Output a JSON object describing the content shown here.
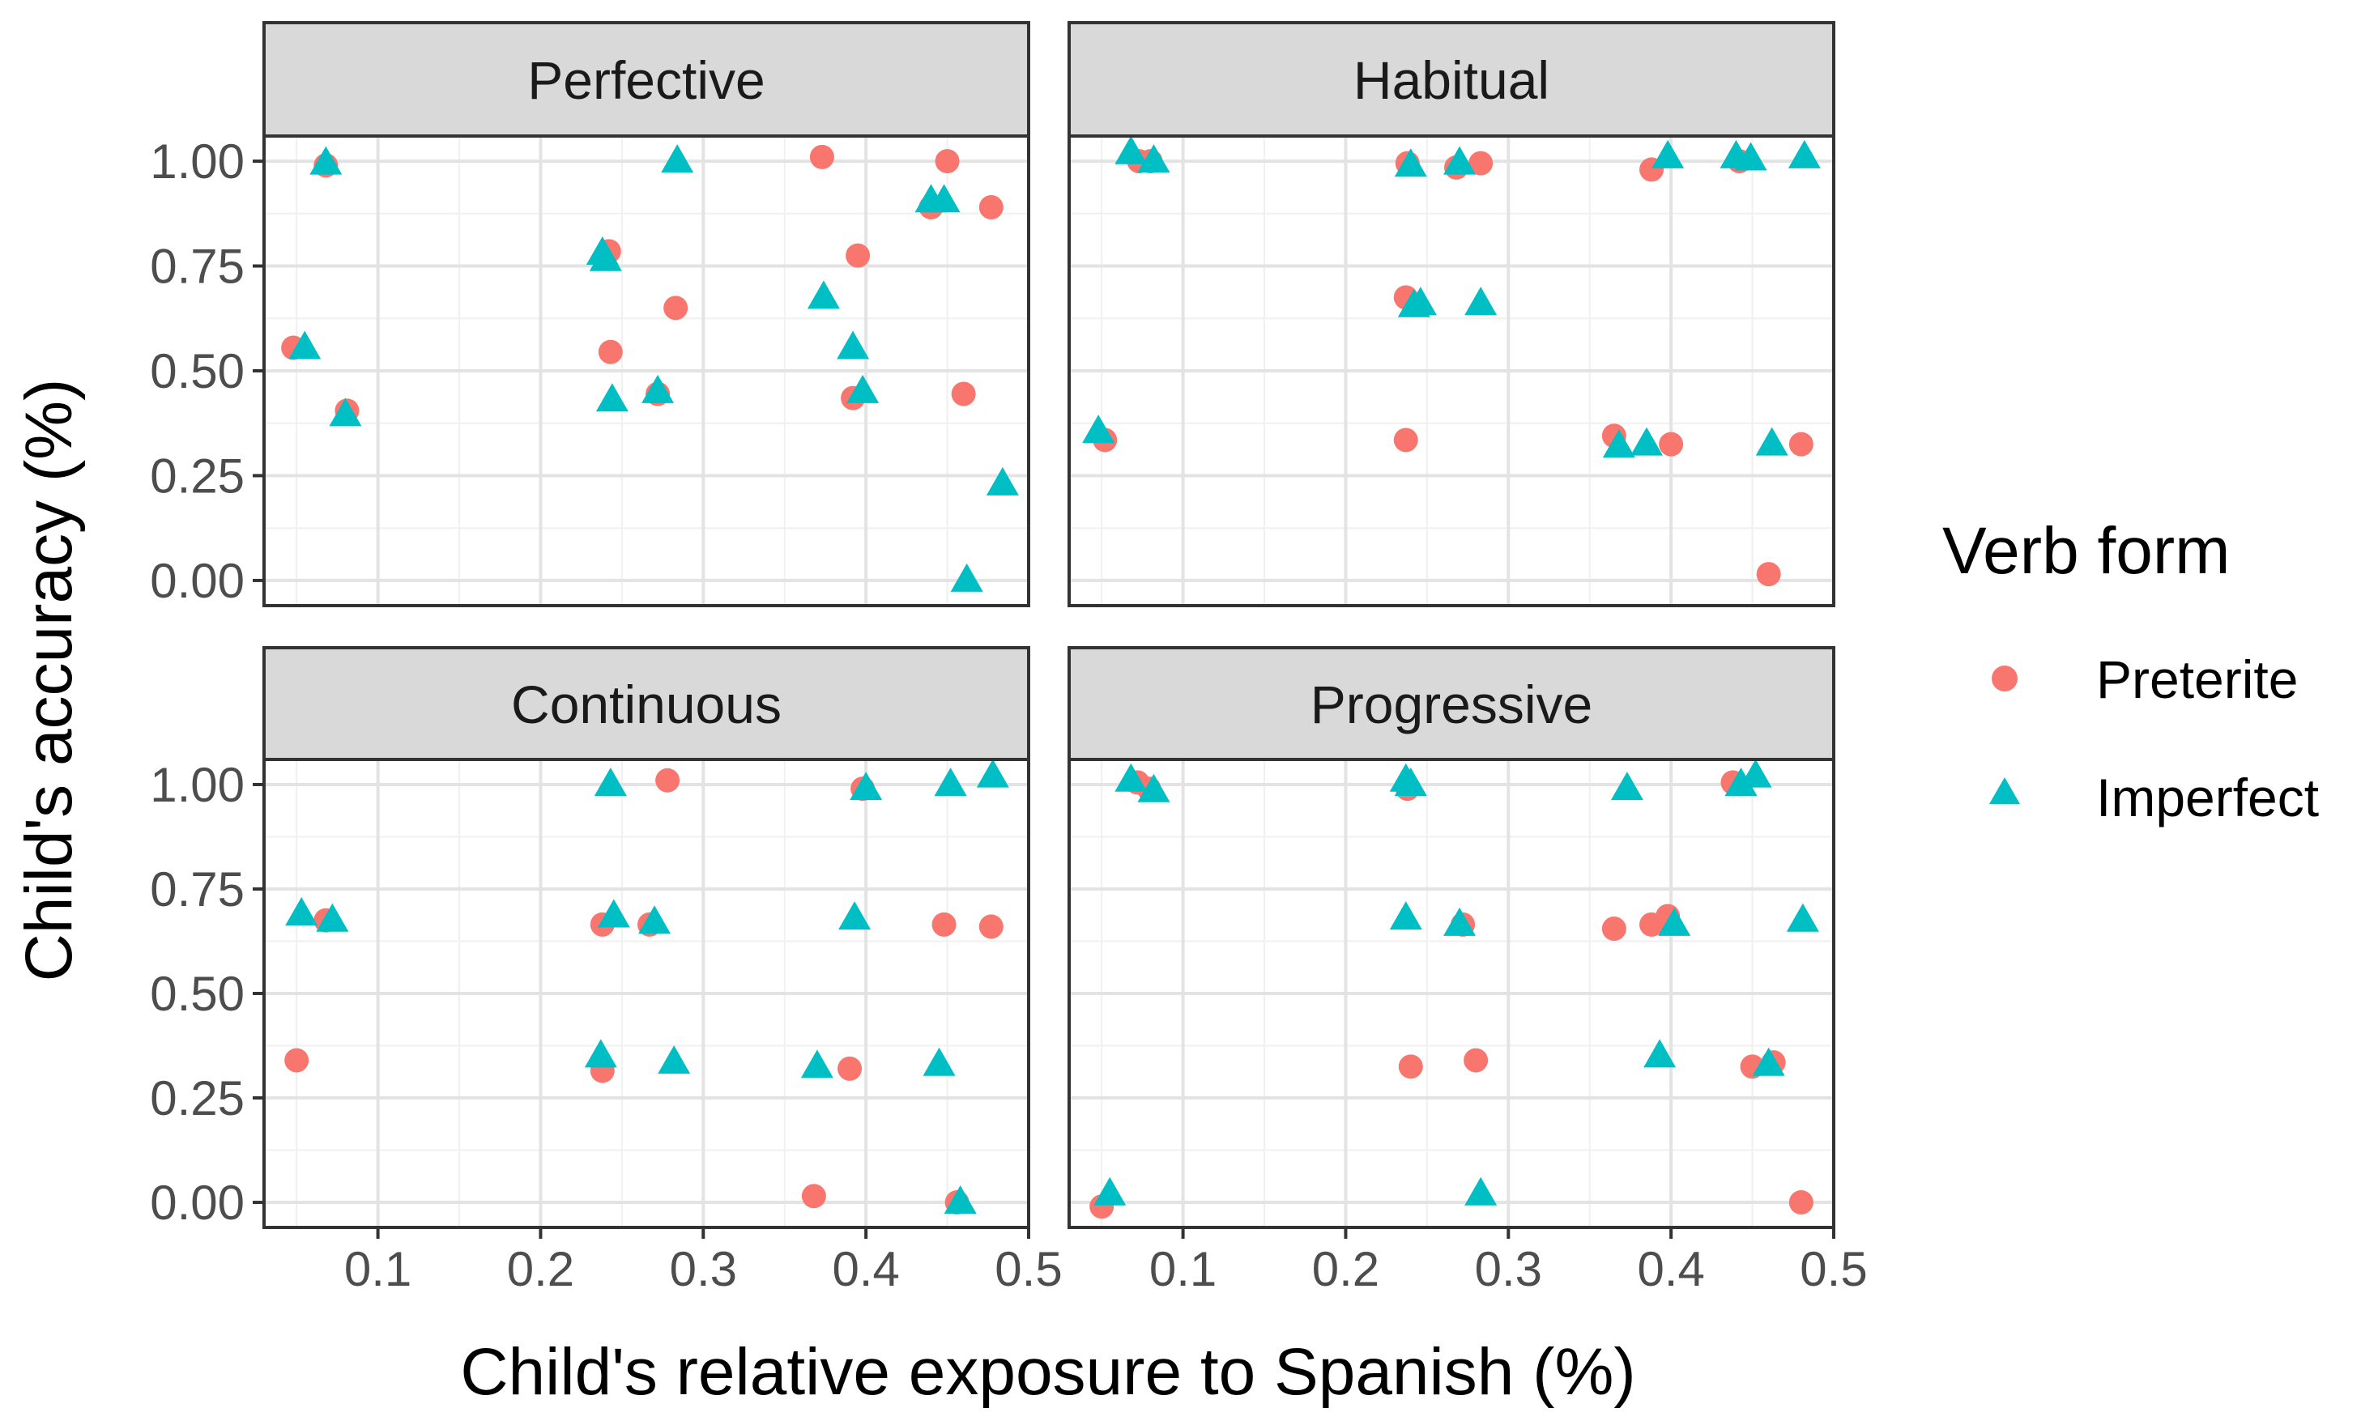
{
  "chart_data": {
    "type": "scatter",
    "xlabel": "Child's relative exposure to Spanish (%)",
    "ylabel": "Child's accuracy (%)",
    "xlim": [
      0.03,
      0.5
    ],
    "ylim": [
      -0.06,
      1.06
    ],
    "xticks": [
      0.1,
      0.2,
      0.3,
      0.4,
      0.5
    ],
    "xtick_labels": [
      "0.1",
      "0.2",
      "0.3",
      "0.4",
      "0.5"
    ],
    "yticks": [
      0,
      0.25,
      0.5,
      0.75,
      1.0
    ],
    "ytick_labels": [
      "0.00",
      "0.25",
      "0.50",
      "0.75",
      "1.00"
    ],
    "grid": true,
    "legend": {
      "title": "Verb form",
      "position": "right",
      "entries": [
        {
          "label": "Preterite",
          "color": "#F8766D",
          "shape": "circle"
        },
        {
          "label": "Imperfect",
          "color": "#00BFC4",
          "shape": "triangle"
        }
      ]
    },
    "panels": [
      {
        "title": "Perfective",
        "series": [
          {
            "name": "Preterite",
            "points": [
              [
                0.048,
                0.555
              ],
              [
                0.068,
                0.99
              ],
              [
                0.081,
                0.405
              ],
              [
                0.242,
                0.785
              ],
              [
                0.243,
                0.545
              ],
              [
                0.272,
                0.445
              ],
              [
                0.283,
                0.65
              ],
              [
                0.373,
                1.01
              ],
              [
                0.395,
                0.775
              ],
              [
                0.392,
                0.435
              ],
              [
                0.44,
                0.89
              ],
              [
                0.45,
                1.0
              ],
              [
                0.46,
                0.445
              ],
              [
                0.477,
                0.89
              ]
            ]
          },
          {
            "name": "Imperfect",
            "points": [
              [
                0.055,
                0.555
              ],
              [
                0.068,
                0.995
              ],
              [
                0.08,
                0.395
              ],
              [
                0.238,
                0.78
              ],
              [
                0.24,
                0.765
              ],
              [
                0.244,
                0.43
              ],
              [
                0.272,
                0.45
              ],
              [
                0.284,
                1.0
              ],
              [
                0.374,
                0.675
              ],
              [
                0.392,
                0.555
              ],
              [
                0.398,
                0.45
              ],
              [
                0.44,
                0.905
              ],
              [
                0.448,
                0.905
              ],
              [
                0.462,
                0.0
              ],
              [
                0.484,
                0.23
              ]
            ]
          }
        ]
      },
      {
        "title": "Habitual",
        "series": [
          {
            "name": "Preterite",
            "points": [
              [
                0.052,
                0.335
              ],
              [
                0.073,
                1.0
              ],
              [
                0.08,
                1.0
              ],
              [
                0.237,
                0.335
              ],
              [
                0.237,
                0.675
              ],
              [
                0.238,
                0.995
              ],
              [
                0.268,
                0.985
              ],
              [
                0.283,
                0.995
              ],
              [
                0.388,
                0.98
              ],
              [
                0.365,
                0.345
              ],
              [
                0.4,
                0.325
              ],
              [
                0.442,
                1.0
              ],
              [
                0.46,
                0.015
              ],
              [
                0.48,
                0.325
              ]
            ]
          },
          {
            "name": "Imperfect",
            "points": [
              [
                0.048,
                0.355
              ],
              [
                0.068,
                1.02
              ],
              [
                0.082,
                1.0
              ],
              [
                0.24,
                0.99
              ],
              [
                0.242,
                0.655
              ],
              [
                0.246,
                0.66
              ],
              [
                0.27,
                0.995
              ],
              [
                0.283,
                0.66
              ],
              [
                0.368,
                0.32
              ],
              [
                0.385,
                0.325
              ],
              [
                0.398,
                1.01
              ],
              [
                0.44,
                1.01
              ],
              [
                0.449,
                1.005
              ],
              [
                0.462,
                0.325
              ],
              [
                0.482,
                1.01
              ]
            ]
          }
        ]
      },
      {
        "title": "Continuous",
        "series": [
          {
            "name": "Preterite",
            "points": [
              [
                0.05,
                0.34
              ],
              [
                0.068,
                0.675
              ],
              [
                0.238,
                0.315
              ],
              [
                0.238,
                0.665
              ],
              [
                0.267,
                0.665
              ],
              [
                0.278,
                1.01
              ],
              [
                0.368,
                0.015
              ],
              [
                0.39,
                0.32
              ],
              [
                0.398,
                0.99
              ],
              [
                0.448,
                0.665
              ],
              [
                0.456,
                0.0
              ],
              [
                0.477,
                0.66
              ]
            ]
          },
          {
            "name": "Imperfect",
            "points": [
              [
                0.053,
                0.69
              ],
              [
                0.072,
                0.675
              ],
              [
                0.237,
                0.35
              ],
              [
                0.243,
                1.0
              ],
              [
                0.245,
                0.685
              ],
              [
                0.27,
                0.67
              ],
              [
                0.282,
                0.335
              ],
              [
                0.37,
                0.325
              ],
              [
                0.393,
                0.68
              ],
              [
                0.4,
                0.99
              ],
              [
                0.445,
                0.33
              ],
              [
                0.452,
                1.0
              ],
              [
                0.458,
                0.0
              ],
              [
                0.478,
                1.02
              ]
            ]
          }
        ]
      },
      {
        "title": "Progressive",
        "series": [
          {
            "name": "Preterite",
            "points": [
              [
                0.05,
                -0.01
              ],
              [
                0.072,
                1.005
              ],
              [
                0.079,
                0.99
              ],
              [
                0.238,
                0.99
              ],
              [
                0.24,
                0.325
              ],
              [
                0.272,
                0.665
              ],
              [
                0.28,
                0.34
              ],
              [
                0.365,
                0.655
              ],
              [
                0.388,
                0.665
              ],
              [
                0.398,
                0.685
              ],
              [
                0.438,
                1.005
              ],
              [
                0.45,
                0.325
              ],
              [
                0.463,
                0.335
              ],
              [
                0.48,
                0.0
              ]
            ]
          },
          {
            "name": "Imperfect",
            "points": [
              [
                0.055,
                0.02
              ],
              [
                0.068,
                1.01
              ],
              [
                0.082,
                0.985
              ],
              [
                0.237,
                1.01
              ],
              [
                0.24,
                1.0
              ],
              [
                0.237,
                0.68
              ],
              [
                0.27,
                0.665
              ],
              [
                0.283,
                0.02
              ],
              [
                0.373,
                0.99
              ],
              [
                0.393,
                0.35
              ],
              [
                0.402,
                0.665
              ],
              [
                0.443,
                1.0
              ],
              [
                0.452,
                1.02
              ],
              [
                0.46,
                0.33
              ],
              [
                0.481,
                0.675
              ]
            ]
          }
        ]
      }
    ]
  }
}
